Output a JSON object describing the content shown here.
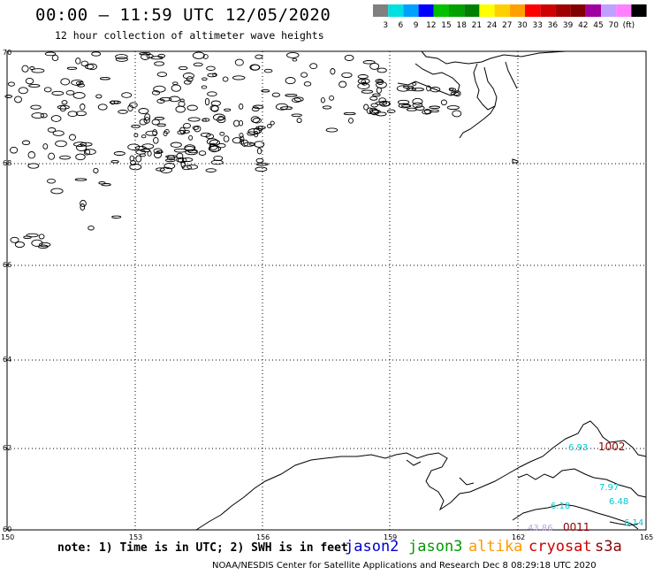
{
  "header": {
    "title": "00:00 – 11:59 UTC 12/05/2020",
    "subtitle": "12 hour collection of altimeter wave heights"
  },
  "color_scale": {
    "colors": [
      "#808080",
      "#00e0e0",
      "#00a0ff",
      "#0000ff",
      "#00c000",
      "#00a000",
      "#008000",
      "#ffff00",
      "#ffd000",
      "#ffa000",
      "#ff0000",
      "#d00000",
      "#a00000",
      "#800000",
      "#a000a0",
      "#c0a0ff",
      "#ff80ff",
      "#000000"
    ],
    "labels": [
      "3",
      "6",
      "9",
      "12",
      "15",
      "18",
      "21",
      "24",
      "27",
      "30",
      "33",
      "36",
      "39",
      "42",
      "45",
      "70",
      "(ft)"
    ]
  },
  "map": {
    "lat_labels": [
      "70",
      "68",
      "66",
      "64",
      "62",
      "60"
    ],
    "lon_labels": [
      "150",
      "153",
      "156",
      "159",
      "162",
      "165"
    ],
    "observations": [
      {
        "text": "6.93",
        "color": "#00c8d0"
      },
      {
        "text": "1002",
        "color": "#8b0000"
      },
      {
        "text": "7.97",
        "color": "#00c8d0"
      },
      {
        "text": "6.48",
        "color": "#00c8d0"
      },
      {
        "text": "6.18",
        "color": "#00c8d0"
      },
      {
        "text": "6.14",
        "color": "#00c8d0"
      },
      {
        "text": "43.86",
        "color": "#b8a8e0"
      },
      {
        "text": "0011",
        "color": "#8b0000"
      }
    ]
  },
  "footer": {
    "note": "note: 1) Time is in UTC; 2) SWH is in feet",
    "satellites": [
      {
        "name": "jason2",
        "color": "#0000cc"
      },
      {
        "name": "jason3",
        "color": "#009900"
      },
      {
        "name": "altika",
        "color": "#ff9900"
      },
      {
        "name": "cryosat",
        "color": "#cc0000"
      },
      {
        "name": "s3a",
        "color": "#8b0000"
      }
    ],
    "credit": "NOAA/NESDIS Center for Satellite Applications and Research   Dec  8 08:29:18 UTC 2020"
  }
}
